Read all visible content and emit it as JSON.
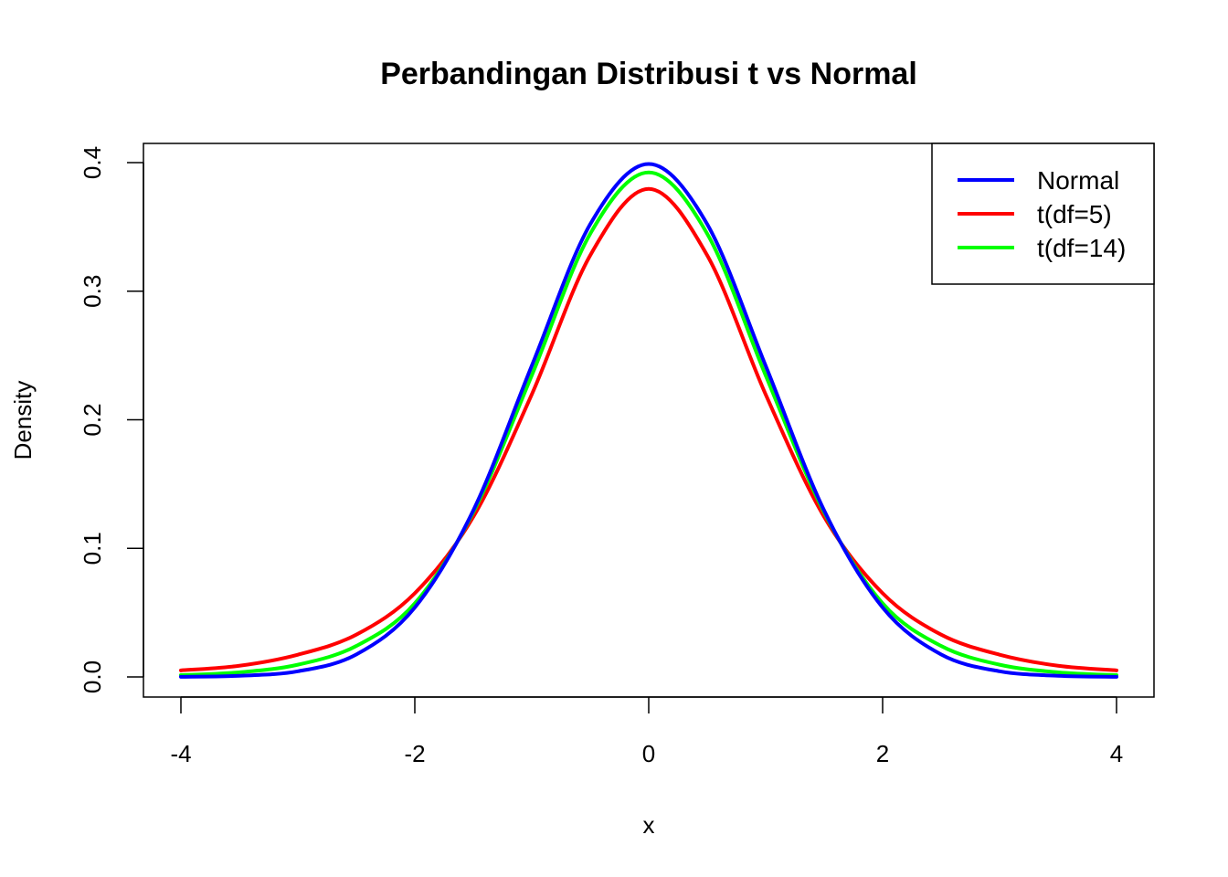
{
  "chart_data": {
    "type": "line",
    "title": "Perbandingan Distribusi t vs Normal",
    "xlabel": "x",
    "ylabel": "Density",
    "xlim": [
      -4,
      4
    ],
    "ylim": [
      0,
      0.4
    ],
    "x_ticks": [
      "-4",
      "-2",
      "0",
      "2",
      "4"
    ],
    "y_ticks": [
      "0.0",
      "0.1",
      "0.2",
      "0.3",
      "0.4"
    ],
    "grid": false,
    "legend_position": "top-right",
    "x": [
      -4,
      -3.5,
      -3,
      -2.5,
      -2,
      -1.5,
      -1,
      -0.5,
      0,
      0.5,
      1,
      1.5,
      2,
      2.5,
      3,
      3.5,
      4
    ],
    "series": [
      {
        "name": "Normal",
        "color": "#0000ff",
        "values": [
          0.0001,
          0.0009,
          0.0044,
          0.0175,
          0.054,
          0.1295,
          0.242,
          0.3521,
          0.3989,
          0.3521,
          0.242,
          0.1295,
          0.054,
          0.0175,
          0.0044,
          0.0009,
          0.0001
        ]
      },
      {
        "name": "t(df=5)",
        "color": "#ff0000",
        "values": [
          0.0051,
          0.0087,
          0.0173,
          0.0329,
          0.0651,
          0.1245,
          0.2197,
          0.3279,
          0.3796,
          0.3279,
          0.2197,
          0.1245,
          0.0651,
          0.0329,
          0.0173,
          0.0087,
          0.0051
        ]
      },
      {
        "name": "t(df=14)",
        "color": "#00ff00",
        "values": [
          0.0014,
          0.0036,
          0.0095,
          0.0241,
          0.0572,
          0.1281,
          0.2345,
          0.3447,
          0.3924,
          0.3447,
          0.2345,
          0.1281,
          0.0572,
          0.0241,
          0.0095,
          0.0036,
          0.0014
        ]
      }
    ]
  }
}
